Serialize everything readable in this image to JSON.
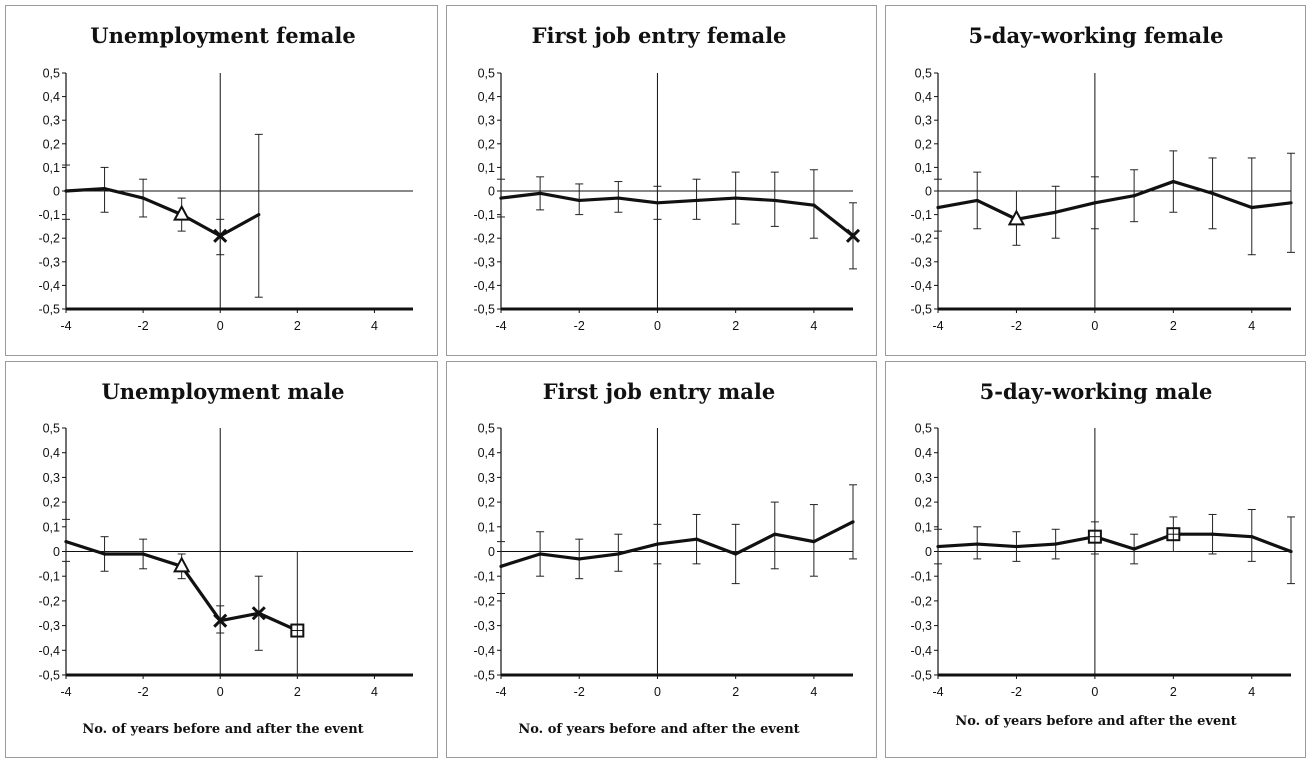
{
  "chart_data": [
    {
      "type": "line",
      "title": "Unemployment female",
      "xlabel": "",
      "xlim": [
        -4,
        5
      ],
      "ylim": [
        -0.5,
        0.5
      ],
      "xticks": [
        -4,
        -2,
        0,
        2,
        4
      ],
      "xtick_labels": [
        "-4",
        "-2",
        "0",
        "2",
        "4"
      ],
      "yticks": [
        0.5,
        0.4,
        0.3,
        0.2,
        0.1,
        0,
        -0.1,
        -0.2,
        -0.3,
        -0.4,
        -0.5
      ],
      "ytick_labels": [
        "0,5",
        "0,4",
        "0,3",
        "0,2",
        "0,1",
        "0",
        "-0,1",
        "-0,2",
        "-0,3",
        "-0,4",
        "-0,5"
      ],
      "series": [
        {
          "x": [
            -4,
            -3,
            -2,
            -1,
            0,
            1
          ],
          "y": [
            0.0,
            0.01,
            -0.03,
            -0.1,
            -0.19,
            -0.1
          ],
          "lower": [
            -0.12,
            -0.09,
            -0.11,
            -0.17,
            -0.27,
            -0.45
          ],
          "upper": [
            0.11,
            0.1,
            0.05,
            -0.03,
            -0.12,
            0.24
          ],
          "markers": [
            null,
            null,
            null,
            "triangle",
            "x",
            null
          ]
        }
      ]
    },
    {
      "type": "line",
      "title": "First job entry female",
      "xlabel": "",
      "xlim": [
        -4,
        5
      ],
      "ylim": [
        -0.5,
        0.5
      ],
      "xticks": [
        -4,
        -2,
        0,
        2,
        4
      ],
      "xtick_labels": [
        "-4",
        "-2",
        "0",
        "2",
        "4"
      ],
      "yticks": [
        0.5,
        0.4,
        0.3,
        0.2,
        0.1,
        0,
        -0.1,
        -0.2,
        -0.3,
        -0.4,
        -0.5
      ],
      "ytick_labels": [
        "0,5",
        "0,4",
        "0,3",
        "0,2",
        "0,1",
        "0",
        "-0,1",
        "-0,2",
        "-0,3",
        "-0,4",
        "-0,5"
      ],
      "series": [
        {
          "x": [
            -4,
            -3,
            -2,
            -1,
            0,
            1,
            2,
            3,
            4,
            5
          ],
          "y": [
            -0.03,
            -0.01,
            -0.04,
            -0.03,
            -0.05,
            -0.04,
            -0.03,
            -0.04,
            -0.06,
            -0.19
          ],
          "lower": [
            -0.11,
            -0.08,
            -0.1,
            -0.09,
            -0.12,
            -0.12,
            -0.14,
            -0.15,
            -0.2,
            -0.33
          ],
          "upper": [
            0.05,
            0.06,
            0.03,
            0.04,
            0.02,
            0.05,
            0.08,
            0.08,
            0.09,
            -0.05
          ],
          "markers": [
            null,
            null,
            null,
            null,
            null,
            null,
            null,
            null,
            null,
            "x"
          ]
        }
      ]
    },
    {
      "type": "line",
      "title": "5-day-working female",
      "xlabel": "",
      "xlim": [
        -4,
        5
      ],
      "ylim": [
        -0.5,
        0.5
      ],
      "xticks": [
        -4,
        -2,
        0,
        2,
        4
      ],
      "xtick_labels": [
        "-4",
        "-2",
        "0",
        "2",
        "4"
      ],
      "yticks": [
        0.5,
        0.4,
        0.3,
        0.2,
        0.1,
        0,
        -0.1,
        -0.2,
        -0.3,
        -0.4,
        -0.5
      ],
      "ytick_labels": [
        "0,5",
        "0,4",
        "0,3",
        "0,2",
        "0,1",
        "0",
        "-0,1",
        "-0,2",
        "-0,3",
        "-0,4",
        "-0,5"
      ],
      "series": [
        {
          "x": [
            -4,
            -3,
            -2,
            -1,
            0,
            1,
            2,
            3,
            4,
            5
          ],
          "y": [
            -0.07,
            -0.04,
            -0.12,
            -0.09,
            -0.05,
            -0.02,
            0.04,
            -0.01,
            -0.07,
            -0.05
          ],
          "lower": [
            -0.17,
            -0.16,
            -0.23,
            -0.2,
            -0.16,
            -0.13,
            -0.09,
            -0.16,
            -0.27,
            -0.26
          ],
          "upper": [
            0.05,
            0.08,
            0.0,
            0.02,
            0.06,
            0.09,
            0.17,
            0.14,
            0.14,
            0.16
          ],
          "markers": [
            null,
            null,
            "triangle",
            null,
            null,
            null,
            null,
            null,
            null,
            null
          ]
        }
      ]
    },
    {
      "type": "line",
      "title": "Unemployment male",
      "xlabel": "No. of years before and after the event",
      "xlim": [
        -4,
        5
      ],
      "ylim": [
        -0.5,
        0.5
      ],
      "xticks": [
        -4,
        -2,
        0,
        2,
        4
      ],
      "xtick_labels": [
        "-4",
        "-2",
        "0",
        "2",
        "4"
      ],
      "yticks": [
        0.5,
        0.4,
        0.3,
        0.2,
        0.1,
        0,
        -0.1,
        -0.2,
        -0.3,
        -0.4,
        -0.5
      ],
      "ytick_labels": [
        "0,5",
        "0,4",
        "0,3",
        "0,2",
        "0,1",
        "0",
        "-0,1",
        "-0,2",
        "-0,3",
        "-0,4",
        "-0,5"
      ],
      "series": [
        {
          "x": [
            -4,
            -3,
            -2,
            -1,
            0,
            1,
            2
          ],
          "y": [
            0.04,
            -0.01,
            -0.01,
            -0.06,
            -0.28,
            -0.25,
            -0.32
          ],
          "lower": [
            -0.04,
            -0.08,
            -0.07,
            -0.11,
            -0.33,
            -0.4,
            -0.5
          ],
          "upper": [
            0.13,
            0.06,
            0.05,
            -0.01,
            -0.22,
            -0.1,
            0.0
          ],
          "markers": [
            null,
            null,
            null,
            "triangle",
            "x",
            "x",
            "square"
          ]
        }
      ]
    },
    {
      "type": "line",
      "title": "First job entry male",
      "xlabel": "No. of years before and after the event",
      "xlim": [
        -4,
        5
      ],
      "ylim": [
        -0.5,
        0.5
      ],
      "xticks": [
        -4,
        -2,
        0,
        2,
        4
      ],
      "xtick_labels": [
        "-4",
        "-2",
        "0",
        "2",
        "4"
      ],
      "yticks": [
        0.5,
        0.4,
        0.3,
        0.2,
        0.1,
        0,
        -0.1,
        -0.2,
        -0.3,
        -0.4,
        -0.5
      ],
      "ytick_labels": [
        "0,5",
        "0,4",
        "0,3",
        "0,2",
        "0,1",
        "0",
        "-0,1",
        "-0,2",
        "-0,3",
        "-0,4",
        "-0,5"
      ],
      "series": [
        {
          "x": [
            -4,
            -3,
            -2,
            -1,
            0,
            1,
            2,
            3,
            4,
            5
          ],
          "y": [
            -0.06,
            -0.01,
            -0.03,
            -0.01,
            0.03,
            0.05,
            -0.01,
            0.07,
            0.04,
            0.12
          ],
          "lower": [
            -0.17,
            -0.1,
            -0.11,
            -0.08,
            -0.05,
            -0.05,
            -0.13,
            -0.07,
            -0.1,
            -0.03
          ],
          "upper": [
            0.04,
            0.08,
            0.05,
            0.07,
            0.11,
            0.15,
            0.11,
            0.2,
            0.19,
            0.27
          ],
          "markers": [
            null,
            null,
            null,
            null,
            null,
            null,
            null,
            null,
            null,
            null
          ]
        }
      ]
    },
    {
      "type": "line",
      "title": "5-day-working male",
      "xlabel": "No. of years before and after the event",
      "xlim": [
        -4,
        5
      ],
      "ylim": [
        -0.5,
        0.5
      ],
      "xticks": [
        -4,
        -2,
        0,
        2,
        4
      ],
      "xtick_labels": [
        "-4",
        "-2",
        "0",
        "2",
        "4"
      ],
      "yticks": [
        0.5,
        0.4,
        0.3,
        0.2,
        0.1,
        0,
        -0.1,
        -0.2,
        -0.3,
        -0.4,
        -0.5
      ],
      "ytick_labels": [
        "0,5",
        "0,4",
        "0,3",
        "0,2",
        "0,1",
        "0",
        "-0,1",
        "-0,2",
        "-0,3",
        "-0,4",
        "-0,5"
      ],
      "series": [
        {
          "x": [
            -4,
            -3,
            -2,
            -1,
            0,
            1,
            2,
            3,
            4,
            5
          ],
          "y": [
            0.02,
            0.03,
            0.02,
            0.03,
            0.06,
            0.01,
            0.07,
            0.07,
            0.06,
            0.0
          ],
          "lower": [
            -0.05,
            -0.03,
            -0.04,
            -0.03,
            -0.01,
            -0.05,
            0.0,
            -0.01,
            -0.04,
            -0.13
          ],
          "upper": [
            0.09,
            0.1,
            0.08,
            0.09,
            0.12,
            0.07,
            0.14,
            0.15,
            0.17,
            0.14
          ],
          "markers": [
            null,
            null,
            null,
            null,
            "square",
            null,
            "square",
            null,
            null,
            null
          ]
        }
      ]
    }
  ]
}
